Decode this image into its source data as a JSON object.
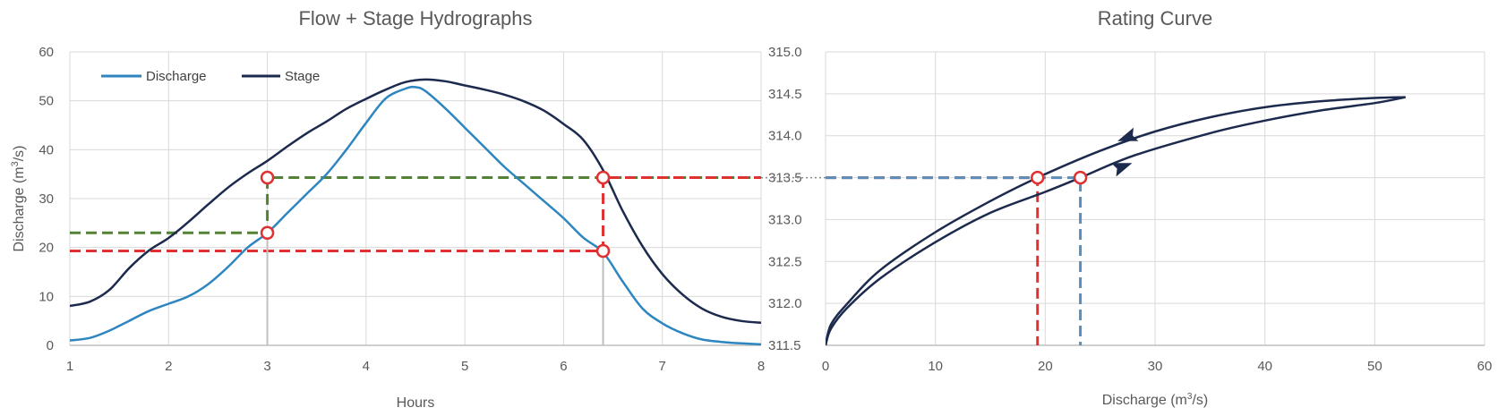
{
  "chart_data": [
    {
      "id": "hydrographs",
      "type": "line",
      "title": "Flow + Stage Hydrographs",
      "xlabel": "Hours",
      "ylabel_main": "Discharge (m",
      "ylabel_sup": "3",
      "ylabel_tail": "/s)",
      "xlim": [
        1,
        8
      ],
      "ylim": [
        0,
        60
      ],
      "y2lim": [
        311.5,
        315.0
      ],
      "xticks": [
        "1",
        "2",
        "3",
        "4",
        "5",
        "6",
        "7",
        "8"
      ],
      "yticks": [
        "0",
        "10",
        "20",
        "30",
        "40",
        "50",
        "60"
      ],
      "grid": true,
      "legend_position": "top-left",
      "series": [
        {
          "name": "Discharge",
          "axis": "left",
          "color": "#2e86c1",
          "x": [
            1.0,
            1.2,
            1.4,
            1.6,
            1.8,
            2.0,
            2.2,
            2.4,
            2.6,
            2.8,
            3.0,
            3.2,
            3.4,
            3.6,
            3.8,
            4.0,
            4.2,
            4.4,
            4.5,
            4.6,
            4.8,
            5.0,
            5.2,
            5.4,
            5.6,
            5.8,
            6.0,
            6.2,
            6.4,
            6.6,
            6.8,
            7.0,
            7.2,
            7.4,
            7.6,
            7.8,
            8.0
          ],
          "y": [
            1.0,
            1.5,
            3.0,
            5.0,
            7.0,
            8.5,
            10.0,
            12.5,
            16.0,
            20.0,
            23.0,
            27.0,
            31.0,
            35.0,
            40.0,
            45.5,
            50.5,
            52.5,
            52.8,
            52.0,
            48.5,
            44.5,
            40.5,
            36.5,
            33.0,
            29.5,
            26.0,
            22.0,
            19.0,
            13.0,
            7.5,
            4.5,
            2.5,
            1.2,
            0.7,
            0.4,
            0.2
          ]
        },
        {
          "name": "Stage",
          "axis": "right",
          "color": "#1c2a4d",
          "x": [
            1.0,
            1.2,
            1.4,
            1.6,
            1.8,
            2.0,
            2.2,
            2.4,
            2.6,
            2.8,
            3.0,
            3.2,
            3.4,
            3.6,
            3.8,
            4.0,
            4.2,
            4.4,
            4.6,
            4.8,
            5.0,
            5.2,
            5.4,
            5.6,
            5.8,
            6.0,
            6.2,
            6.4,
            6.6,
            6.8,
            7.0,
            7.2,
            7.4,
            7.6,
            7.8,
            8.0
          ],
          "y": [
            311.97,
            312.02,
            312.16,
            312.42,
            312.63,
            312.78,
            312.97,
            313.18,
            313.38,
            313.55,
            313.7,
            313.87,
            314.03,
            314.17,
            314.32,
            314.44,
            314.55,
            314.64,
            314.67,
            314.65,
            314.6,
            314.55,
            314.49,
            314.41,
            314.3,
            314.14,
            313.95,
            313.59,
            313.1,
            312.68,
            312.35,
            312.11,
            311.94,
            311.84,
            311.79,
            311.77
          ]
        }
      ],
      "markers": [
        {
          "x": 3.0,
          "y": 34.3
        },
        {
          "x": 3.0,
          "y": 23.0
        },
        {
          "x": 6.4,
          "y": 34.3
        },
        {
          "x": 6.4,
          "y": 19.3
        }
      ],
      "reference_lines": [
        {
          "color": "#548235",
          "points": [
            [
              1.0,
              23.0
            ],
            [
              3.0,
              23.0
            ],
            [
              3.0,
              34.3
            ],
            [
              8.0,
              34.3
            ]
          ]
        },
        {
          "color": "#e03030",
          "points": [
            [
              1.0,
              19.3
            ],
            [
              6.4,
              19.3
            ],
            [
              6.4,
              34.3
            ],
            [
              8.0,
              34.3
            ]
          ]
        },
        {
          "color": "#c0c0c0",
          "points": [
            [
              3.0,
              0.0
            ],
            [
              3.0,
              23.0
            ]
          ]
        },
        {
          "color": "#c0c0c0",
          "points": [
            [
              6.4,
              0.0
            ],
            [
              6.4,
              19.3
            ]
          ]
        }
      ]
    },
    {
      "id": "rating-curve",
      "type": "line",
      "title": "Rating Curve",
      "xlabel_main": "Discharge (m",
      "xlabel_sup": "3",
      "xlabel_tail": "/s)",
      "xlim": [
        0,
        60
      ],
      "ylim": [
        311.5,
        315.0
      ],
      "xticks": [
        "0",
        "10",
        "20",
        "30",
        "40",
        "50",
        "60"
      ],
      "yticks": [
        "311.5",
        "312.0",
        "312.5",
        "313.0",
        "313.5",
        "314.0",
        "314.5",
        "315.0"
      ],
      "grid": true,
      "series": [
        {
          "name": "",
          "color": "#1c2a4d",
          "x": [
            0.0,
            0.5,
            2,
            5,
            10,
            15,
            19.3,
            25,
            30,
            35,
            40,
            45,
            50,
            52.8
          ],
          "y": [
            311.5,
            311.75,
            312.0,
            312.4,
            312.85,
            313.22,
            313.5,
            313.82,
            314.05,
            314.22,
            314.34,
            314.41,
            314.45,
            314.46
          ]
        },
        {
          "name": "",
          "color": "#1c2a4d",
          "x": [
            0.0,
            0.5,
            2,
            5,
            10,
            15,
            20,
            23.2,
            28,
            35,
            40,
            45,
            50,
            52.8
          ],
          "y": [
            311.5,
            311.7,
            311.95,
            312.3,
            312.73,
            313.08,
            313.33,
            313.5,
            313.76,
            314.03,
            314.18,
            314.3,
            314.39,
            314.46
          ]
        }
      ],
      "arrows": [
        {
          "x": 27.5,
          "y": 313.98,
          "direction": "left"
        },
        {
          "x": 27.0,
          "y": 313.63,
          "direction": "right"
        }
      ],
      "markers": [
        {
          "x": 19.3,
          "y": 313.5
        },
        {
          "x": 23.2,
          "y": 313.5
        }
      ],
      "reference_lines": [
        {
          "color": "#e03030",
          "points": [
            [
              0,
              313.5
            ],
            [
              19.3,
              313.5
            ],
            [
              19.3,
              311.5
            ]
          ]
        },
        {
          "color": "#5b8db8",
          "points": [
            [
              0,
              313.5
            ],
            [
              23.2,
              313.5
            ],
            [
              23.2,
              311.5
            ]
          ]
        }
      ]
    }
  ]
}
